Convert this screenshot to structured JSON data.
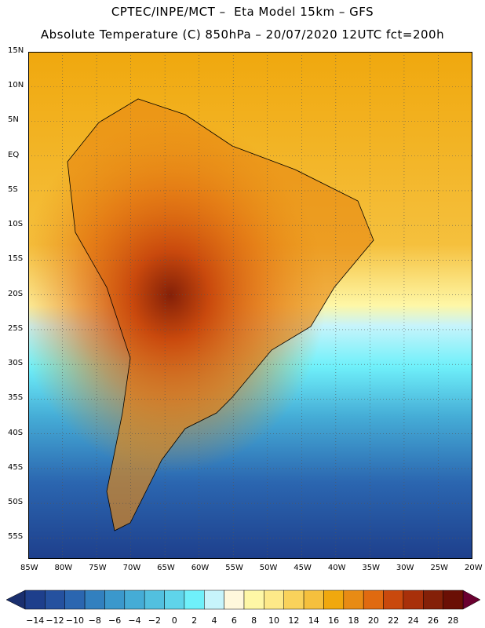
{
  "header": {
    "line1": "CPTEC/INPE/MCT –  Eta Model 15km – GFS",
    "line2": "Absolute Temperature (C) 850hPa – 20/07/2020 12UTC fct=200h"
  },
  "map": {
    "lat_labels": [
      "15N",
      "10N",
      "5N",
      "EQ",
      "5S",
      "10S",
      "15S",
      "20S",
      "25S",
      "30S",
      "35S",
      "40S",
      "45S",
      "50S",
      "55S"
    ],
    "lon_labels": [
      "85W",
      "80W",
      "75W",
      "70W",
      "65W",
      "60W",
      "55W",
      "50W",
      "45W",
      "40W",
      "35W",
      "30W",
      "25W",
      "20W"
    ],
    "lat_range": [
      15,
      -58
    ],
    "lon_range": [
      -85,
      -20
    ],
    "grid": "dotted"
  },
  "colorbar": {
    "labels": [
      "-14",
      "-12",
      "-10",
      "-8",
      "-6",
      "-4",
      "-2",
      "0",
      "2",
      "4",
      "6",
      "8",
      "10",
      "12",
      "14",
      "16",
      "18",
      "20",
      "22",
      "24",
      "26",
      "28"
    ],
    "colors": [
      "#1e3f8c",
      "#25519f",
      "#2b66b0",
      "#3280bf",
      "#3b98cc",
      "#45acd6",
      "#52c0df",
      "#5fd4ea",
      "#6ff0fa",
      "#c7f4fb",
      "#fff8dc",
      "#fef7a6",
      "#fde989",
      "#f9d25b",
      "#f5c03d",
      "#f0a80e",
      "#e88b14",
      "#e06a10",
      "#c9490d",
      "#a8300a",
      "#842008",
      "#6a0f05"
    ],
    "under_color": "#1a2f6e",
    "over_color": "#6a0030"
  }
}
